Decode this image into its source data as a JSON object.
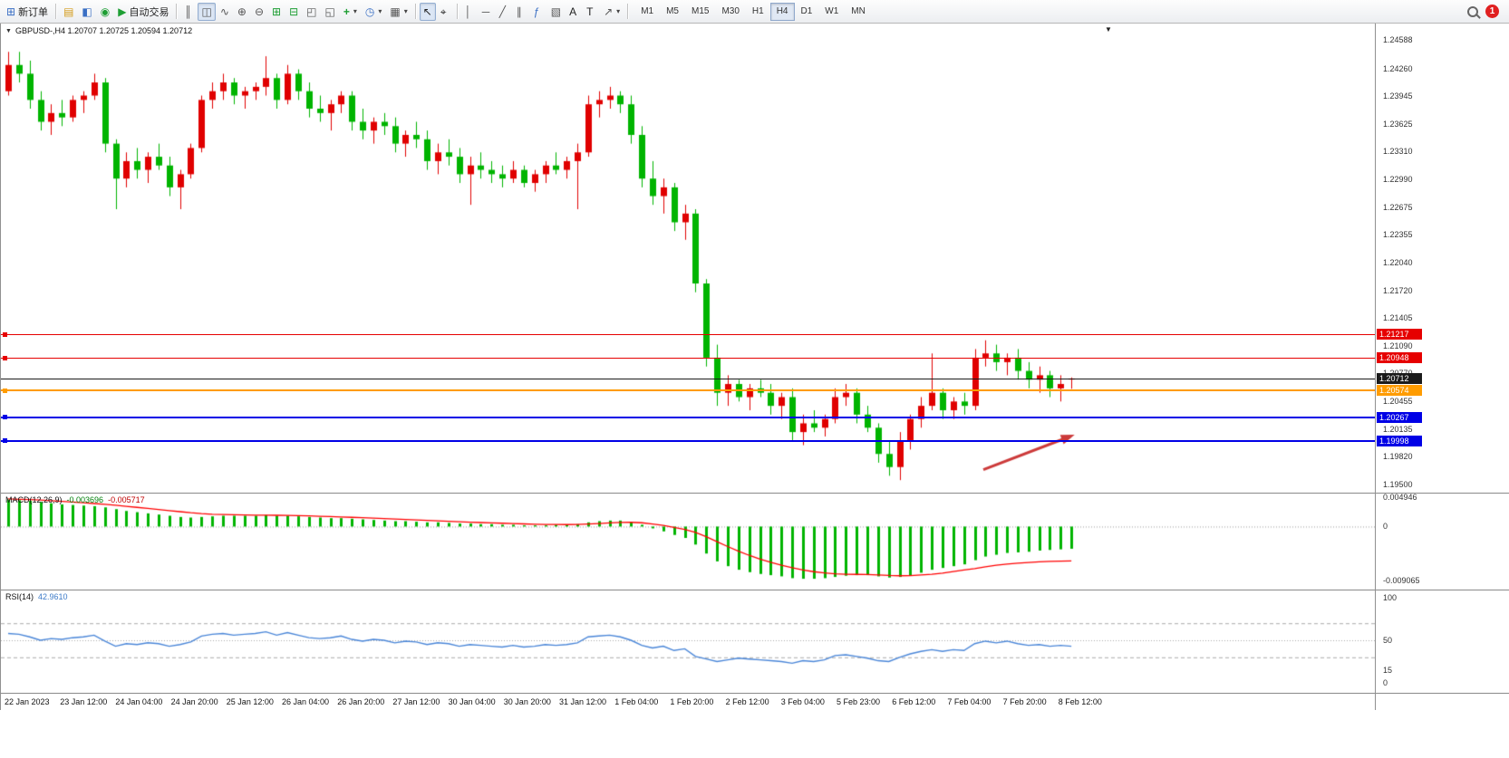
{
  "colors": {
    "bull": "#e00000",
    "bear": "#00b400",
    "macd_hist": "#00b400",
    "macd_signal": "#ff0000",
    "rsi_line": "#4a86d8",
    "arrow": "#cc3a3a"
  },
  "icons": {
    "new_order": "⊞",
    "market_watch": "▤",
    "data_window": "◧",
    "navigator": "◉",
    "auto_trading": "▶",
    "bar_chart": "║",
    "candle_chart": "◫",
    "line_chart": "∿",
    "zoom_in": "⊕",
    "zoom_out": "⊖",
    "tile_windows": "⊞",
    "cascade_windows": "⊟",
    "arrange_h": "◰",
    "arrange_v": "◱",
    "add_indicator": "+",
    "period": "◷",
    "template": "▦",
    "dropdown": "▾",
    "cursor": "↖",
    "crosshair": "⌖",
    "vline": "│",
    "hline": "─",
    "trendline": "╱",
    "channel": "∥",
    "fibonacci": "ƒ",
    "shapes": "▧",
    "text_tool": "A",
    "label_tool": "T",
    "arrows_tool": "↗",
    "symbol_dropdown": "▼",
    "chart_shift_marker": "▼"
  },
  "toolbar": {
    "new_order_label": "新订单",
    "auto_trading_label": "自动交易",
    "timeframes": [
      "M1",
      "M5",
      "M15",
      "M30",
      "H1",
      "H4",
      "D1",
      "W1",
      "MN"
    ],
    "active_timeframe": "H4",
    "notification_count": "1"
  },
  "chart": {
    "header": "GBPUSD-,H4  1.20707 1.20725 1.20594 1.20712"
  },
  "chart_data": {
    "type": "candlestick",
    "symbol": "GBPUSD-",
    "timeframe": "H4",
    "ohlc_current": {
      "open": "1.20707",
      "high": "1.20725",
      "low": "1.20594",
      "close": "1.20712"
    },
    "main": {
      "price_min": 1.19407,
      "price_max": 1.24774,
      "axis_labels": [
        "1.24588",
        "1.24260",
        "1.23945",
        "1.23625",
        "1.23310",
        "1.22990",
        "1.22675",
        "1.22355",
        "1.22040",
        "1.21720",
        "1.21405",
        "1.21090",
        "1.20770",
        "1.20455",
        "1.20135",
        "1.19820",
        "1.19500"
      ],
      "hlines": [
        {
          "value": 1.21217,
          "label": "1.21217",
          "color": "#e60000",
          "tag_bg": "#e60000",
          "width": 1,
          "handle": true
        },
        {
          "value": 1.20948,
          "label": "1.20948",
          "color": "#e60000",
          "tag_bg": "#e60000",
          "width": 1,
          "handle": true
        },
        {
          "value": 1.20712,
          "label": "1.20712",
          "color": "#1b1b1b",
          "tag_bg": "#1b1b1b",
          "width": 1,
          "handle": false
        },
        {
          "value": 1.20574,
          "label": "1.20574",
          "color": "#ff9c00",
          "tag_bg": "#ff9c00",
          "width": 2,
          "handle": true
        },
        {
          "value": 1.20267,
          "label": "1.20267",
          "color": "#0000e6",
          "tag_bg": "#0000e6",
          "width": 2,
          "handle": true
        },
        {
          "value": 1.19998,
          "label": "1.19998",
          "color": "#0000e6",
          "tag_bg": "#0000e6",
          "width": 2,
          "handle": true
        }
      ],
      "arrow": {
        "from_index": 90.8,
        "from_price": 1.1967,
        "to_index": 99.3,
        "to_price": 1.2007,
        "color": "#cc3a3a"
      },
      "candles": [
        [
          1.24,
          1.2445,
          1.2395,
          1.243
        ],
        [
          1.243,
          1.2445,
          1.241,
          1.242
        ],
        [
          1.242,
          1.2435,
          1.238,
          1.239
        ],
        [
          1.239,
          1.24,
          1.2355,
          1.2365
        ],
        [
          1.2365,
          1.2385,
          1.235,
          1.2375
        ],
        [
          1.2375,
          1.239,
          1.236,
          1.237
        ],
        [
          1.237,
          1.2395,
          1.2365,
          1.239
        ],
        [
          1.239,
          1.24,
          1.2375,
          1.2395
        ],
        [
          1.2395,
          1.242,
          1.239,
          1.241
        ],
        [
          1.241,
          1.2415,
          1.233,
          1.234
        ],
        [
          1.234,
          1.2345,
          1.2265,
          1.23
        ],
        [
          1.23,
          1.233,
          1.229,
          1.232
        ],
        [
          1.232,
          1.2335,
          1.23,
          1.231
        ],
        [
          1.231,
          1.233,
          1.2295,
          1.2325
        ],
        [
          1.2325,
          1.234,
          1.231,
          1.2315
        ],
        [
          1.2315,
          1.2325,
          1.228,
          1.229
        ],
        [
          1.229,
          1.231,
          1.2265,
          1.2305
        ],
        [
          1.2305,
          1.234,
          1.23,
          1.2335
        ],
        [
          1.2335,
          1.2395,
          1.233,
          1.239
        ],
        [
          1.239,
          1.241,
          1.238,
          1.24
        ],
        [
          1.24,
          1.242,
          1.239,
          1.241
        ],
        [
          1.241,
          1.2415,
          1.2385,
          1.2395
        ],
        [
          1.2395,
          1.2405,
          1.238,
          1.24
        ],
        [
          1.24,
          1.241,
          1.239,
          1.2405
        ],
        [
          1.2405,
          1.244,
          1.2395,
          1.2415
        ],
        [
          1.2415,
          1.242,
          1.238,
          1.239
        ],
        [
          1.239,
          1.243,
          1.2385,
          1.242
        ],
        [
          1.242,
          1.2425,
          1.239,
          1.24
        ],
        [
          1.24,
          1.241,
          1.237,
          1.238
        ],
        [
          1.238,
          1.2395,
          1.2365,
          1.2375
        ],
        [
          1.2375,
          1.239,
          1.2355,
          1.2385
        ],
        [
          1.2385,
          1.24,
          1.2375,
          1.2395
        ],
        [
          1.2395,
          1.24,
          1.2355,
          1.2365
        ],
        [
          1.2365,
          1.238,
          1.2345,
          1.2355
        ],
        [
          1.2355,
          1.237,
          1.234,
          1.2365
        ],
        [
          1.2365,
          1.2375,
          1.235,
          1.236
        ],
        [
          1.236,
          1.237,
          1.233,
          1.234
        ],
        [
          1.234,
          1.2355,
          1.2325,
          1.235
        ],
        [
          1.235,
          1.2365,
          1.2335,
          1.2345
        ],
        [
          1.2345,
          1.2355,
          1.231,
          1.232
        ],
        [
          1.232,
          1.234,
          1.2305,
          1.233
        ],
        [
          1.233,
          1.2345,
          1.2315,
          1.2325
        ],
        [
          1.2325,
          1.2335,
          1.2295,
          1.2305
        ],
        [
          1.2305,
          1.2325,
          1.227,
          1.2315
        ],
        [
          1.2315,
          1.233,
          1.23,
          1.231
        ],
        [
          1.231,
          1.232,
          1.2295,
          1.2305
        ],
        [
          1.2305,
          1.2315,
          1.229,
          1.23
        ],
        [
          1.23,
          1.232,
          1.2295,
          1.231
        ],
        [
          1.231,
          1.2315,
          1.229,
          1.2295
        ],
        [
          1.2295,
          1.231,
          1.2285,
          1.2305
        ],
        [
          1.2305,
          1.232,
          1.2295,
          1.2315
        ],
        [
          1.2315,
          1.233,
          1.2305,
          1.231
        ],
        [
          1.231,
          1.2325,
          1.23,
          1.232
        ],
        [
          1.232,
          1.234,
          1.2265,
          1.233
        ],
        [
          1.233,
          1.2395,
          1.2325,
          1.2385
        ],
        [
          1.2385,
          1.24,
          1.237,
          1.239
        ],
        [
          1.239,
          1.2405,
          1.238,
          1.2395
        ],
        [
          1.2395,
          1.24,
          1.2375,
          1.2385
        ],
        [
          1.2385,
          1.2395,
          1.234,
          1.235
        ],
        [
          1.235,
          1.236,
          1.229,
          1.23
        ],
        [
          1.23,
          1.232,
          1.227,
          1.228
        ],
        [
          1.228,
          1.23,
          1.226,
          1.229
        ],
        [
          1.229,
          1.2295,
          1.224,
          1.225
        ],
        [
          1.225,
          1.227,
          1.223,
          1.226
        ],
        [
          1.226,
          1.2265,
          1.217,
          1.218
        ],
        [
          1.218,
          1.2185,
          1.2085,
          1.2095
        ],
        [
          1.2095,
          1.211,
          1.204,
          1.2055
        ],
        [
          1.2055,
          1.2075,
          1.204,
          1.2065
        ],
        [
          1.2065,
          1.207,
          1.2045,
          1.205
        ],
        [
          1.205,
          1.2065,
          1.2035,
          1.206
        ],
        [
          1.206,
          1.207,
          1.205,
          1.2055
        ],
        [
          1.2055,
          1.2065,
          1.203,
          1.204
        ],
        [
          1.204,
          1.2055,
          1.2025,
          1.205
        ],
        [
          1.205,
          1.206,
          1.2,
          1.201
        ],
        [
          1.201,
          1.203,
          1.1995,
          1.202
        ],
        [
          1.202,
          1.2035,
          1.201,
          1.2015
        ],
        [
          1.2015,
          1.203,
          1.2005,
          1.2025
        ],
        [
          1.2025,
          1.206,
          1.202,
          1.205
        ],
        [
          1.205,
          1.2065,
          1.204,
          1.2055
        ],
        [
          1.2055,
          1.206,
          1.202,
          1.203
        ],
        [
          1.203,
          1.204,
          1.201,
          1.2015
        ],
        [
          1.2015,
          1.202,
          1.1975,
          1.1985
        ],
        [
          1.1985,
          1.2,
          1.196,
          1.197
        ],
        [
          1.197,
          1.201,
          1.1955,
          1.2
        ],
        [
          1.2,
          1.203,
          1.199,
          1.2025
        ],
        [
          1.2025,
          1.205,
          1.2015,
          1.204
        ],
        [
          1.204,
          1.21,
          1.2035,
          1.2055
        ],
        [
          1.2055,
          1.206,
          1.2025,
          1.2035
        ],
        [
          1.2035,
          1.205,
          1.2025,
          1.2045
        ],
        [
          1.2045,
          1.2055,
          1.203,
          1.204
        ],
        [
          1.204,
          1.2105,
          1.2035,
          1.2095
        ],
        [
          1.2095,
          1.2115,
          1.2085,
          1.21
        ],
        [
          1.21,
          1.211,
          1.208,
          1.209
        ],
        [
          1.209,
          1.21,
          1.2075,
          1.2095
        ],
        [
          1.2095,
          1.2105,
          1.207,
          1.208
        ],
        [
          1.208,
          1.209,
          1.206,
          1.207
        ],
        [
          1.207,
          1.2085,
          1.2055,
          1.2075
        ],
        [
          1.2075,
          1.208,
          1.205,
          1.206
        ],
        [
          1.206,
          1.2075,
          1.2045,
          1.2065
        ],
        [
          1.20707,
          1.20725,
          1.20594,
          1.20712
        ]
      ]
    },
    "macd": {
      "label": "MACD(12,26,9)",
      "value_main": "-0.003696",
      "value_signal": "-0.005717",
      "max": 0.0055,
      "min": -0.0105,
      "axis_labels": [
        {
          "text": "0.004946",
          "value": 0.004946
        },
        {
          "text": "0",
          "value": 0
        },
        {
          "text": "-0.009065",
          "value": -0.009065
        }
      ],
      "histogram": [
        0.0045,
        0.0044,
        0.0043,
        0.0041,
        0.0039,
        0.0037,
        0.0036,
        0.0035,
        0.0034,
        0.0032,
        0.0029,
        0.0026,
        0.0024,
        0.0022,
        0.002,
        0.0018,
        0.0016,
        0.0015,
        0.0016,
        0.0017,
        0.0018,
        0.0018,
        0.0018,
        0.0018,
        0.0019,
        0.0018,
        0.0018,
        0.0017,
        0.0016,
        0.0015,
        0.0014,
        0.0014,
        0.0013,
        0.0012,
        0.0011,
        0.001,
        0.0009,
        0.0009,
        0.0008,
        0.0007,
        0.0007,
        0.0006,
        0.0005,
        0.0005,
        0.0004,
        0.0004,
        0.0003,
        0.0003,
        0.0002,
        0.0002,
        0.0002,
        0.0003,
        0.0003,
        0.0004,
        0.0007,
        0.0009,
        0.001,
        0.001,
        0.0008,
        0.0003,
        -0.0003,
        -0.0008,
        -0.0014,
        -0.0019,
        -0.003,
        -0.0045,
        -0.0058,
        -0.0066,
        -0.0072,
        -0.0076,
        -0.0079,
        -0.0081,
        -0.0083,
        -0.0086,
        -0.0087,
        -0.0087,
        -0.0086,
        -0.0084,
        -0.0082,
        -0.0081,
        -0.0081,
        -0.0083,
        -0.0085,
        -0.0084,
        -0.0081,
        -0.0077,
        -0.0072,
        -0.0069,
        -0.0066,
        -0.0063,
        -0.0056,
        -0.005,
        -0.0047,
        -0.0044,
        -0.0043,
        -0.0042,
        -0.004,
        -0.0039,
        -0.0038,
        -0.003696
      ],
      "signal": [
        0.0046,
        0.00455,
        0.0045,
        0.00442,
        0.00432,
        0.0042,
        0.00408,
        0.00396,
        0.00384,
        0.0037,
        0.00355,
        0.00338,
        0.0032,
        0.00302,
        0.00284,
        0.00266,
        0.00248,
        0.0023,
        0.00216,
        0.00206,
        0.002,
        0.00196,
        0.00193,
        0.0019,
        0.0019,
        0.00188,
        0.00186,
        0.00183,
        0.00178,
        0.00172,
        0.00166,
        0.0016,
        0.00154,
        0.00147,
        0.0014,
        0.00132,
        0.00124,
        0.00117,
        0.0011,
        0.00102,
        0.00095,
        0.00088,
        0.0008,
        0.00074,
        0.00067,
        0.00062,
        0.00056,
        0.0005,
        0.00044,
        0.00039,
        0.00035,
        0.00034,
        0.00033,
        0.00034,
        0.00041,
        0.00051,
        0.00061,
        0.00069,
        0.00071,
        0.00063,
        0.00044,
        0.00019,
        -0.00013,
        -0.00048,
        -0.00098,
        -0.00169,
        -0.00251,
        -0.00333,
        -0.0041,
        -0.0048,
        -0.00542,
        -0.00596,
        -0.00643,
        -0.00686,
        -0.00723,
        -0.00752,
        -0.00774,
        -0.00787,
        -0.00794,
        -0.00797,
        -0.008,
        -0.00806,
        -0.00815,
        -0.0082,
        -0.00818,
        -0.00808,
        -0.00795,
        -0.00775,
        -0.0075,
        -0.00725,
        -0.007,
        -0.0067,
        -0.00645,
        -0.00625,
        -0.0061,
        -0.00598,
        -0.00588,
        -0.0058,
        -0.00575,
        -0.005717
      ]
    },
    "rsi": {
      "label": "RSI(14)",
      "value": "42.9610",
      "max": 100,
      "min": 0,
      "levels": [
        70,
        50,
        30
      ],
      "axis_labels": [
        {
          "text": "100",
          "value": 100
        },
        {
          "text": "50",
          "value": 50
        },
        {
          "text": "15",
          "value": 15
        },
        {
          "text": "0",
          "value": 0
        }
      ],
      "values": [
        58,
        57,
        54,
        50,
        52,
        51,
        53,
        54,
        56,
        49,
        43,
        46,
        45,
        47,
        46,
        43,
        45,
        48,
        55,
        57,
        58,
        56,
        57,
        58,
        60,
        56,
        59,
        56,
        53,
        52,
        53,
        55,
        51,
        49,
        51,
        50,
        47,
        49,
        48,
        45,
        47,
        46,
        43,
        45,
        44,
        43,
        42,
        44,
        42,
        43,
        45,
        44,
        45,
        47,
        54,
        55,
        56,
        54,
        50,
        44,
        41,
        43,
        38,
        40,
        31,
        28,
        25,
        27,
        29,
        28,
        27,
        26,
        25,
        23,
        26,
        25,
        27,
        32,
        33,
        31,
        29,
        26,
        25,
        30,
        34,
        37,
        39,
        37,
        39,
        38,
        46,
        49,
        47,
        49,
        46,
        44,
        45,
        43,
        44,
        42.961
      ]
    },
    "time_labels": [
      "22 Jan 2023",
      "23 Jan 12:00",
      "24 Jan 04:00",
      "24 Jan 20:00",
      "25 Jan 12:00",
      "26 Jan 04:00",
      "26 Jan 20:00",
      "27 Jan 12:00",
      "30 Jan 04:00",
      "30 Jan 20:00",
      "31 Jan 12:00",
      "1 Feb 04:00",
      "1 Feb 20:00",
      "2 Feb 12:00",
      "3 Feb 04:00",
      "5 Feb 23:00",
      "6 Feb 12:00",
      "7 Feb 04:00",
      "7 Feb 20:00",
      "8 Feb 12:00"
    ]
  }
}
